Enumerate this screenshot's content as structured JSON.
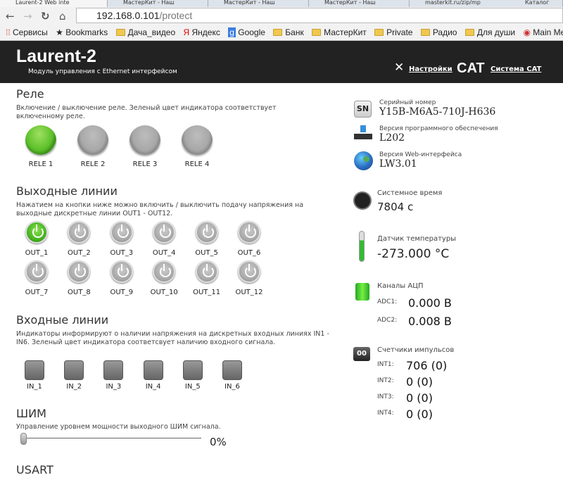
{
  "browser": {
    "tabs": [
      "Laurent-2 Web inte",
      "МастерКит - Наш",
      "МастерКит - Наш",
      "МастерКит - Наш",
      "masterkit.ru/zip/mp",
      "Каталог"
    ],
    "url_host": "192.168.0.101",
    "url_path": "/protect",
    "bookmarks": [
      "Сервисы",
      "Bookmarks",
      "Дача_видео",
      "Яндекс",
      "Google",
      "Банк",
      "МастерКит",
      "Private",
      "Радио",
      "Для души",
      "Main Menu"
    ]
  },
  "header": {
    "title": "Laurent-2",
    "subtitle": "Модуль управления с Ethernet интерфейсом",
    "settings_label": "Настройки",
    "cat_logo": "CAT",
    "cat_label": "Система CAT"
  },
  "relays": {
    "title": "Реле",
    "desc": "Включение / выключение реле. Зеленый цвет индикатора соответствует включенному реле.",
    "items": [
      {
        "label": "RELE 1",
        "on": true
      },
      {
        "label": "RELE 2",
        "on": false
      },
      {
        "label": "RELE 3",
        "on": false
      },
      {
        "label": "RELE 4",
        "on": false
      }
    ]
  },
  "outputs": {
    "title": "Выходные линии",
    "desc": "Нажатием на кнопки ниже можно включить / выключить подачу напряжения на выходные дискретные линии OUT1 - OUT12.",
    "items": [
      {
        "label": "OUT_1",
        "on": true
      },
      {
        "label": "OUT_2",
        "on": false
      },
      {
        "label": "OUT_3",
        "on": false
      },
      {
        "label": "OUT_4",
        "on": false
      },
      {
        "label": "OUT_5",
        "on": false
      },
      {
        "label": "OUT_6",
        "on": false
      },
      {
        "label": "OUT_7",
        "on": false
      },
      {
        "label": "OUT_8",
        "on": false
      },
      {
        "label": "OUT_9",
        "on": false
      },
      {
        "label": "OUT_10",
        "on": false
      },
      {
        "label": "OUT_11",
        "on": false
      },
      {
        "label": "OUT_12",
        "on": false
      }
    ]
  },
  "inputs": {
    "title": "Входные линии",
    "desc": "Индикаторы информируют о наличии напряжения на дискретных входных линиях IN1 - IN6. Зеленый цвет индикатора соответсвует наличию входного сигнала.",
    "items": [
      "IN_1",
      "IN_2",
      "IN_3",
      "IN_4",
      "IN_5",
      "IN_6"
    ]
  },
  "pwm": {
    "title": "ШИМ",
    "desc": "Управление уровнем мощности выходного ШИМ сигнала.",
    "value": "0%",
    "percent": 0
  },
  "usart": {
    "title": "USART"
  },
  "info": {
    "serial_label": "Серийный номер",
    "serial": "Y15B-M6A5-710J-H636",
    "sn_icon": "SN",
    "fw_label": "Версия программного обеспечения",
    "fw": "L202",
    "web_label": "Версия Web-интерфейса",
    "web": "LW3.01",
    "time_label": "Системное время",
    "time": "7804 с",
    "temp_label": "Датчик температуры",
    "temp": "-273.000 °C",
    "adc_label": "Каналы АЦП",
    "adc": [
      {
        "name": "ADC1:",
        "value": "0.000 В"
      },
      {
        "name": "ADC2:",
        "value": "0.008 В"
      }
    ],
    "cnt_label": "Счетчики импульсов",
    "counter_icon": "00",
    "counters": [
      {
        "name": "INT1:",
        "value": "706 (0)"
      },
      {
        "name": "INT2:",
        "value": "0 (0)"
      },
      {
        "name": "INT3:",
        "value": "0 (0)"
      },
      {
        "name": "INT4:",
        "value": "0 (0)"
      }
    ]
  }
}
